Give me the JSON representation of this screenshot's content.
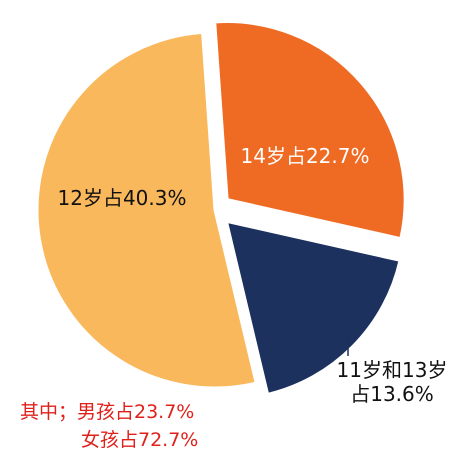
{
  "chart_data": {
    "type": "pie",
    "slices": [
      {
        "label_lines": [
          "14岁占22.7%"
        ],
        "value": 22.7,
        "color": "#ef6a22",
        "text_color": "#ffffff",
        "exploded": true
      },
      {
        "label_lines": [
          "11岁和13岁",
          "占13.6%"
        ],
        "value": 13.6,
        "color": "#1c315e",
        "text_color": "#111111",
        "exploded": true
      },
      {
        "label_lines": [
          "12岁占40.3%"
        ],
        "value": 40.3,
        "color": "#f9b85c",
        "text_color": "#111111",
        "exploded": false
      }
    ],
    "annotations": [
      "其中；男孩占23.7%",
      "女孩占72.7%"
    ]
  },
  "colors": {
    "annotation": "#e0211b",
    "separator": "#ffffff"
  }
}
